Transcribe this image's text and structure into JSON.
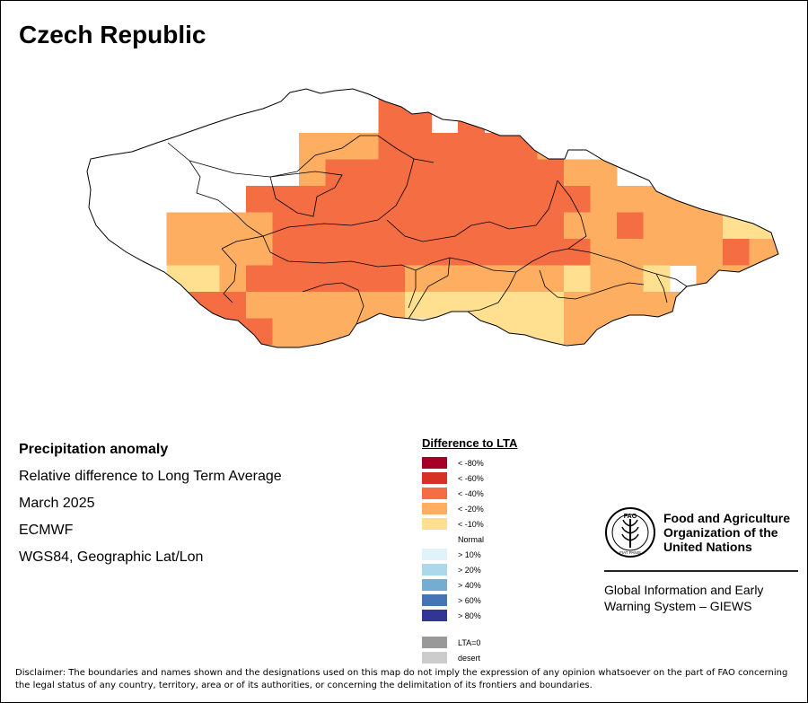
{
  "map": {
    "title": "Czech Republic",
    "colors": {
      "lt80": "#a50026",
      "lt60": "#d73027",
      "lt40": "#f46d43",
      "lt20": "#fdae61",
      "lt10": "#fee090",
      "normal": "#ffffff",
      "gt10": "#e0f3f8",
      "gt20": "#abd9e9",
      "gt40": "#74add1",
      "gt60": "#4575b4",
      "gt80": "#313695",
      "lta0": "#999999",
      "desert": "#cccccc"
    },
    "anomaly_grid_legend_keys": [
      "N",
      "lt10",
      "lt20",
      "lt40",
      "lt60",
      "lt80",
      "gt10",
      "gt20",
      "gt40",
      "gt60",
      "gt80"
    ],
    "anomaly_grid": [
      "..........................................................",
      "..........................................................",
      "..........................................................",
      "...........C.D.................",
      "......CCCCCCCCCCCC...............",
      ".........CCCCCCCCCCCCCBBB.........",
      "...BBBBBBBBCCCCCCCCCCCCCCC.....A.A....",
      "...BBBBBBBCCCCCCCCCCCBBBBBCBBAEEA.......",
      "...BBBBBBBCCCCCCCBBBBBBBBBBBBBBFFFAA....",
      "...CCCCCCCBBBBBBBBBBBBBBBBBBAAAAA.......",
      "....BBBBBBBBBBBBBBBBBBBBBBBBAAAAAA..........",
      ".......EEEEEEEEEEEEEEBBBBBBBBBEEEEEEEE.......",
      ".......EEEEEE.A...BB.EEEEEEEEEFFF........",
      "........EEEEEE.AAAAAAAAEEEEGGGGHHGG.......",
      "...........EEE...AE.....GGGGHHH......."
    ]
  },
  "info": {
    "line1": "Precipitation anomaly",
    "line2": "Relative difference to Long Term Average",
    "line3": "March 2025",
    "line4": "ECMWF",
    "line5": "WGS84, Geographic Lat/Lon"
  },
  "legend": {
    "title": "Difference to LTA",
    "items": [
      {
        "label": "< -80%",
        "color": "#a50026"
      },
      {
        "label": "< -60%",
        "color": "#d73027"
      },
      {
        "label": "< -40%",
        "color": "#f46d43"
      },
      {
        "label": "< -20%",
        "color": "#fdae61"
      },
      {
        "label": "< -10%",
        "color": "#fee090"
      },
      {
        "label": "Normal",
        "color": "#ffffff"
      },
      {
        "label": "> 10%",
        "color": "#e0f3f8"
      },
      {
        "label": "> 20%",
        "color": "#abd9e9"
      },
      {
        "label": "> 40%",
        "color": "#74add1"
      },
      {
        "label": "> 60%",
        "color": "#4575b4"
      },
      {
        "label": "> 80%",
        "color": "#313695"
      },
      {
        "label": "LTA=0",
        "color": "#999999"
      },
      {
        "label": "desert",
        "color": "#cccccc"
      }
    ]
  },
  "fao": {
    "logo_text_top": "FAO",
    "logo_text_bottom": "FIAT PANIS",
    "name1": "Food and Agriculture",
    "name2": "Organization of the",
    "name3": "United Nations",
    "giews1": "Global Information and Early",
    "giews2": "Warning System – GIEWS"
  },
  "disclaimer": "Disclaimer: The boundaries and names shown and the designations used on this map do not imply the expression of any opinion whatsoever on the part of FAO concerning the legal status of any country, territory, area or of its authorities, or concerning the delimitation of its frontiers and boundaries."
}
